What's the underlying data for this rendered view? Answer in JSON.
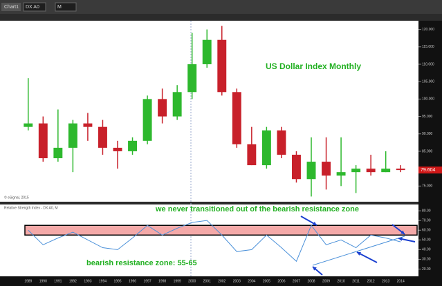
{
  "toolbar": {
    "window": "Chart1",
    "symbol": "DX A0",
    "interval": "M"
  },
  "chart_data": [
    {
      "type": "candlestick",
      "title": "US Dollar Index Monthly",
      "credit": "© eSignal, 2015",
      "categories": [
        "1989",
        "1990",
        "1991",
        "1992",
        "1993",
        "1994",
        "1995",
        "1996",
        "1997",
        "1998",
        "1999",
        "2000",
        "2001",
        "2002",
        "2003",
        "2004",
        "2005",
        "2006",
        "2007",
        "2008",
        "2009",
        "2010",
        "2011",
        "2012",
        "2013",
        "2014"
      ],
      "open": [
        92,
        93,
        83,
        86,
        93,
        92,
        86,
        85,
        88,
        100,
        95,
        102,
        110,
        117,
        102,
        87,
        81,
        91,
        84,
        77,
        82,
        78,
        79,
        80,
        79,
        80
      ],
      "high": [
        106,
        95,
        97,
        94,
        96,
        94,
        88,
        89,
        101,
        103,
        104,
        119,
        120,
        121,
        103,
        92,
        92,
        92,
        85,
        89,
        89,
        89,
        81,
        84,
        85,
        81
      ],
      "low": [
        91,
        82,
        82,
        79,
        88,
        84,
        80,
        84,
        87,
        93,
        94,
        100,
        109,
        101,
        86,
        81,
        80,
        83,
        76,
        72,
        74,
        75,
        73,
        78,
        79,
        79
      ],
      "close": [
        93,
        83,
        86,
        93,
        92,
        86,
        85,
        88,
        100,
        95,
        102,
        110,
        117,
        102,
        87,
        81,
        91,
        84,
        77,
        82,
        78,
        79,
        80,
        79,
        80,
        79.604
      ],
      "up_color": "#2db82d",
      "down_color": "#c8202a",
      "last_value": 79.604,
      "ylim": [
        70.5,
        122.5
      ],
      "yticks": [
        {
          "value": 75,
          "label": "75.000"
        },
        {
          "value": 80,
          "label": "80.000"
        },
        {
          "value": 85,
          "label": "85.000"
        },
        {
          "value": 90,
          "label": "90.000"
        },
        {
          "value": 95,
          "label": "95.000"
        },
        {
          "value": 100,
          "label": "100.000"
        },
        {
          "value": 105,
          "label": "105.000"
        },
        {
          "value": 110,
          "label": "110.000"
        },
        {
          "value": 115,
          "label": "115.000"
        },
        {
          "value": 120,
          "label": "120.000"
        }
      ]
    },
    {
      "type": "line",
      "title": "Relative Strength Index - DX A0, M",
      "categories": [
        "1989",
        "1990",
        "1991",
        "1992",
        "1993",
        "1994",
        "1995",
        "1996",
        "1997",
        "1998",
        "1999",
        "2000",
        "2001",
        "2002",
        "2003",
        "2004",
        "2005",
        "2006",
        "2007",
        "2008",
        "2009",
        "2010",
        "2011",
        "2012",
        "2013",
        "2014"
      ],
      "values": [
        60,
        45,
        52,
        58,
        50,
        42,
        40,
        52,
        65,
        55,
        62,
        68,
        70,
        55,
        38,
        40,
        55,
        42,
        28,
        65,
        45,
        50,
        42,
        55,
        52,
        48
      ],
      "color": "#4a90d9",
      "band": [
        55,
        65
      ],
      "band_color": "#f4a9a8",
      "annotations": [
        "we never transitioned out of the bearish resistance zone",
        "bearish resistance zone: 55-65"
      ],
      "ylim": [
        12.5,
        86.5
      ],
      "yticks": [
        {
          "value": 20,
          "label": "20.00"
        },
        {
          "value": 30,
          "label": "30.00"
        },
        {
          "value": 40,
          "label": "40.00"
        },
        {
          "value": 50,
          "label": "50.00"
        },
        {
          "value": 60,
          "label": "60.00"
        },
        {
          "value": 70,
          "label": "70.00"
        },
        {
          "value": 80,
          "label": "80.00"
        }
      ]
    }
  ]
}
